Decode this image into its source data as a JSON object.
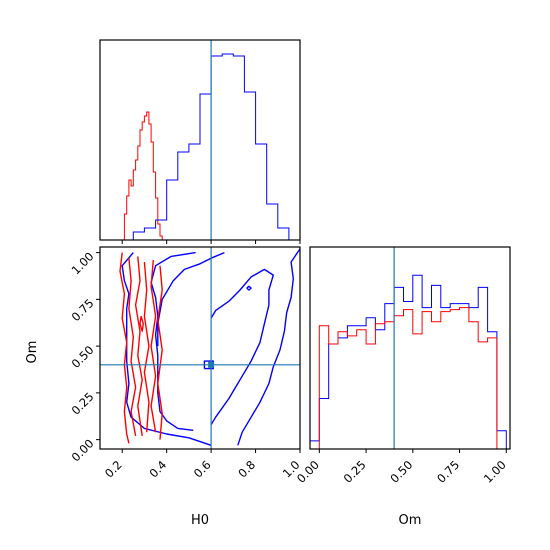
{
  "chart_data": {
    "type": "corner",
    "colors": {
      "red_sample": "#ff0000",
      "blue_sample": "#0000ff",
      "truth": "#1f77b4"
    },
    "truth": {
      "H0": 0.6,
      "Om": 0.4
    },
    "panels": [
      {
        "id": "hist-H0",
        "type": "histogram",
        "xlabel": "",
        "xlim": [
          0.1,
          1.0
        ],
        "ylim": [
          0,
          1.0
        ],
        "xticks": [
          0.2,
          0.4,
          0.6,
          0.8,
          1.0
        ],
        "show_tick_labels": false,
        "series": [
          {
            "color": "red",
            "edges": [
              0.21,
              0.22,
              0.23,
              0.24,
              0.25,
              0.26,
              0.27,
              0.28,
              0.29,
              0.3,
              0.31,
              0.32,
              0.33,
              0.34,
              0.35,
              0.36,
              0.37,
              0.38
            ],
            "values": [
              0.13,
              0.22,
              0.3,
              0.27,
              0.35,
              0.4,
              0.47,
              0.55,
              0.59,
              0.62,
              0.64,
              0.58,
              0.49,
              0.34,
              0.21,
              0.08,
              0.02
            ]
          },
          {
            "color": "blue",
            "edges": [
              0.1,
              0.2,
              0.25,
              0.3,
              0.35,
              0.4,
              0.45,
              0.5,
              0.55,
              0.6,
              0.65,
              0.7,
              0.75,
              0.8,
              0.85,
              0.9,
              0.95,
              1.0
            ],
            "values": [
              0.0,
              0.0,
              0.04,
              0.06,
              0.1,
              0.3,
              0.44,
              0.48,
              0.73,
              0.92,
              0.93,
              0.92,
              0.74,
              0.48,
              0.18,
              0.06,
              0.0
            ]
          }
        ]
      },
      {
        "id": "hist-Om",
        "type": "histogram",
        "xlabel": "Om",
        "xlim": [
          -0.05,
          1.02
        ],
        "ylim": [
          0,
          1.0
        ],
        "xticks": [
          0.0,
          0.25,
          0.5,
          0.75,
          1.0
        ],
        "xticklabels": [
          "0.00",
          "0.25",
          "0.50",
          "0.75",
          "1.00"
        ],
        "series": [
          {
            "color": "blue",
            "edges": [
              -0.05,
              0.0,
              0.05,
              0.1,
              0.15,
              0.2,
              0.25,
              0.3,
              0.35,
              0.4,
              0.45,
              0.5,
              0.55,
              0.6,
              0.65,
              0.7,
              0.75,
              0.8,
              0.85,
              0.9,
              0.95,
              1.0
            ],
            "values": [
              0.04,
              0.25,
              0.52,
              0.55,
              0.61,
              0.61,
              0.65,
              0.59,
              0.72,
              0.8,
              0.73,
              0.86,
              0.7,
              0.81,
              0.7,
              0.72,
              0.72,
              0.7,
              0.8,
              0.58,
              0.09
            ]
          },
          {
            "color": "red",
            "edges": [
              0.0,
              0.05,
              0.1,
              0.15,
              0.2,
              0.25,
              0.3,
              0.35,
              0.4,
              0.45,
              0.5,
              0.55,
              0.6,
              0.65,
              0.7,
              0.75,
              0.8,
              0.85,
              0.9,
              0.95
            ],
            "values": [
              0.61,
              0.52,
              0.58,
              0.56,
              0.59,
              0.52,
              0.62,
              0.63,
              0.66,
              0.69,
              0.57,
              0.68,
              0.63,
              0.68,
              0.69,
              0.7,
              0.63,
              0.53,
              0.55
            ]
          }
        ]
      },
      {
        "id": "contour-H0-Om",
        "type": "contour",
        "xlabel": "H0",
        "ylabel": "Om",
        "xlim": [
          0.1,
          1.0
        ],
        "ylim": [
          -0.05,
          1.03
        ],
        "xticks": [
          0.2,
          0.4,
          0.6,
          0.8,
          1.0
        ],
        "xticklabels": [
          "0.2",
          "0.4",
          "0.6",
          "0.8",
          "1.0"
        ],
        "yticks": [
          0.0,
          0.25,
          0.5,
          0.75,
          1.0
        ],
        "yticklabels": [
          "0.00",
          "0.25",
          "0.50",
          "0.75",
          "1.00"
        ],
        "contours": [
          {
            "color": "blue",
            "points": [
              [
                0.25,
                1.0
              ],
              [
                0.2,
                0.93
              ],
              [
                0.21,
                0.85
              ],
              [
                0.23,
                0.78
              ],
              [
                0.22,
                0.7
              ],
              [
                0.22,
                0.55
              ],
              [
                0.22,
                0.42
              ],
              [
                0.23,
                0.3
              ],
              [
                0.22,
                0.2
              ],
              [
                0.24,
                0.12
              ],
              [
                0.3,
                0.06
              ],
              [
                0.4,
                0.03
              ],
              [
                0.5,
                0.01
              ],
              [
                0.6,
                -0.03
              ]
            ]
          },
          {
            "color": "blue",
            "points": [
              [
                0.53,
                1.0
              ],
              [
                0.42,
                0.98
              ],
              [
                0.35,
                0.93
              ],
              [
                0.33,
                0.84
              ],
              [
                0.35,
                0.76
              ],
              [
                0.36,
                0.66
              ],
              [
                0.35,
                0.56
              ],
              [
                0.36,
                0.45
              ],
              [
                0.36,
                0.35
              ],
              [
                0.36,
                0.25
              ],
              [
                0.37,
                0.15
              ],
              [
                0.4,
                0.1
              ],
              [
                0.45,
                0.06
              ],
              [
                0.52,
                0.05
              ]
            ]
          },
          {
            "color": "blue",
            "points": [
              [
                0.66,
                1.0
              ],
              [
                0.6,
                0.97
              ],
              [
                0.55,
                0.94
              ],
              [
                0.48,
                0.91
              ],
              [
                0.43,
                0.85
              ],
              [
                0.38,
                0.75
              ],
              [
                0.36,
                0.62
              ],
              [
                0.36,
                0.5
              ]
            ]
          },
          {
            "color": "blue",
            "points": [
              [
                1.0,
                1.02
              ],
              [
                0.96,
                0.95
              ],
              [
                0.97,
                0.86
              ],
              [
                0.96,
                0.76
              ],
              [
                0.94,
                0.68
              ],
              [
                0.93,
                0.58
              ],
              [
                0.91,
                0.48
              ],
              [
                0.88,
                0.39
              ],
              [
                0.86,
                0.3
              ],
              [
                0.82,
                0.2
              ],
              [
                0.78,
                0.12
              ],
              [
                0.74,
                0.04
              ],
              [
                0.72,
                -0.03
              ]
            ]
          },
          {
            "color": "blue",
            "points": [
              [
                0.6,
                0.65
              ],
              [
                0.62,
                0.69
              ],
              [
                0.68,
                0.74
              ],
              [
                0.73,
                0.8
              ],
              [
                0.78,
                0.87
              ],
              [
                0.84,
                0.91
              ],
              [
                0.88,
                0.88
              ],
              [
                0.86,
                0.8
              ],
              [
                0.86,
                0.72
              ],
              [
                0.84,
                0.62
              ],
              [
                0.82,
                0.52
              ],
              [
                0.78,
                0.42
              ],
              [
                0.73,
                0.32
              ],
              [
                0.68,
                0.22
              ],
              [
                0.62,
                0.12
              ],
              [
                0.6,
                0.08
              ]
            ]
          },
          {
            "color": "blue",
            "points": [
              [
                0.76,
                0.81
              ],
              [
                0.77,
                0.8
              ],
              [
                0.78,
                0.81
              ],
              [
                0.77,
                0.82
              ],
              [
                0.76,
                0.81
              ]
            ]
          },
          {
            "color": "blue",
            "points": [
              [
                0.57,
                0.38
              ],
              [
                0.61,
                0.38
              ],
              [
                0.61,
                0.42
              ],
              [
                0.57,
                0.42
              ],
              [
                0.57,
                0.38
              ]
            ]
          },
          {
            "color": "red",
            "points": [
              [
                0.2,
                1.0
              ],
              [
                0.19,
                0.9
              ],
              [
                0.21,
                0.78
              ],
              [
                0.2,
                0.65
              ],
              [
                0.22,
                0.52
              ],
              [
                0.21,
                0.4
              ],
              [
                0.22,
                0.28
              ],
              [
                0.21,
                0.15
              ],
              [
                0.22,
                0.03
              ],
              [
                0.23,
                -0.02
              ]
            ]
          },
          {
            "color": "red",
            "points": [
              [
                0.23,
                0.97
              ],
              [
                0.24,
                0.85
              ],
              [
                0.23,
                0.7
              ],
              [
                0.25,
                0.55
              ],
              [
                0.24,
                0.42
              ],
              [
                0.26,
                0.28
              ],
              [
                0.24,
                0.15
              ],
              [
                0.26,
                0.02
              ]
            ]
          },
          {
            "color": "red",
            "points": [
              [
                0.27,
                0.98
              ],
              [
                0.28,
                0.85
              ],
              [
                0.26,
                0.72
              ],
              [
                0.28,
                0.58
              ],
              [
                0.27,
                0.45
              ],
              [
                0.29,
                0.32
              ],
              [
                0.27,
                0.18
              ],
              [
                0.29,
                0.02
              ]
            ]
          },
          {
            "color": "red",
            "points": [
              [
                0.3,
                0.95
              ],
              [
                0.31,
                0.8
              ],
              [
                0.3,
                0.66
              ],
              [
                0.32,
                0.5
              ],
              [
                0.3,
                0.36
              ],
              [
                0.32,
                0.2
              ],
              [
                0.31,
                0.04
              ]
            ]
          },
          {
            "color": "red",
            "points": [
              [
                0.34,
                0.96
              ],
              [
                0.33,
                0.82
              ],
              [
                0.35,
                0.66
              ],
              [
                0.33,
                0.5
              ],
              [
                0.35,
                0.34
              ],
              [
                0.33,
                0.18
              ],
              [
                0.35,
                0.04
              ]
            ]
          },
          {
            "color": "red",
            "points": [
              [
                0.37,
                0.93
              ],
              [
                0.38,
                0.8
              ],
              [
                0.36,
                0.64
              ],
              [
                0.38,
                0.48
              ],
              [
                0.36,
                0.3
              ],
              [
                0.38,
                0.14
              ],
              [
                0.37,
                0.0
              ]
            ]
          },
          {
            "color": "red",
            "points": [
              [
                0.285,
                0.66
              ],
              [
                0.295,
                0.62
              ],
              [
                0.29,
                0.58
              ],
              [
                0.28,
                0.62
              ],
              [
                0.285,
                0.66
              ]
            ]
          }
        ]
      }
    ]
  }
}
